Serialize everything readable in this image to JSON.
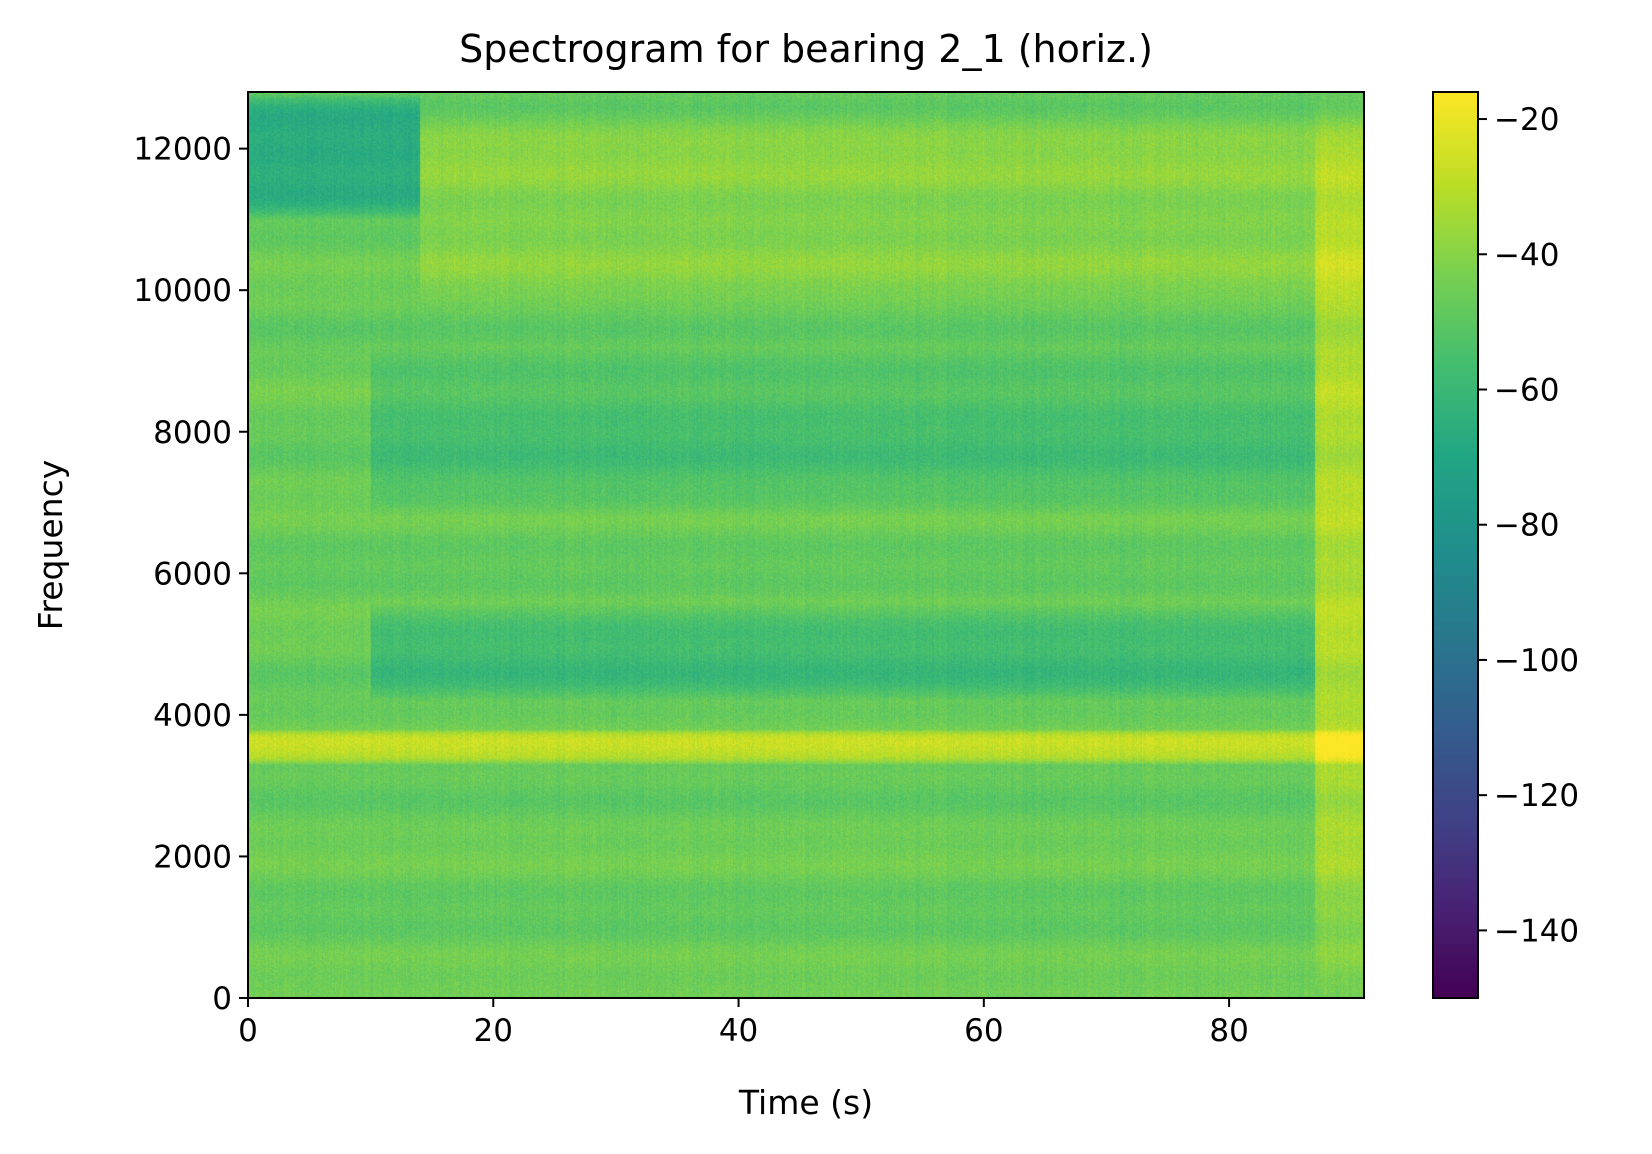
{
  "chart_data": {
    "type": "heatmap",
    "title": "Spectrogram for bearing 2_1 (horiz.)",
    "xlabel": "Time (s)",
    "ylabel": "Frequency",
    "xlim": [
      0,
      91
    ],
    "ylim": [
      0,
      12800
    ],
    "x_ticks": [
      0,
      20,
      40,
      60,
      80
    ],
    "x_tick_labels": [
      "0",
      "20",
      "40",
      "60",
      "80"
    ],
    "y_ticks": [
      0,
      2000,
      4000,
      6000,
      8000,
      10000,
      12000
    ],
    "y_tick_labels": [
      "0",
      "2000",
      "4000",
      "6000",
      "8000",
      "10000",
      "12000"
    ],
    "colorbar": {
      "colormap": "viridis",
      "range": [
        -150,
        -16
      ],
      "ticks": [
        -140,
        -120,
        -100,
        -80,
        -60,
        -40,
        -20
      ],
      "tick_labels": [
        "−140",
        "−120",
        "−100",
        "−80",
        "−60",
        "−40",
        "−20"
      ]
    },
    "grid": false,
    "legend": "none",
    "features": [
      {
        "description": "persistent spectral band",
        "freq_range": [
          3300,
          3800
        ],
        "time_range": [
          0,
          91
        ],
        "level_db": -30
      },
      {
        "description": "early high-frequency low-energy region",
        "freq_range": [
          11000,
          12800
        ],
        "time_range": [
          0,
          14
        ],
        "level_db": -68
      },
      {
        "description": "low-energy band",
        "freq_range": [
          4200,
          5600
        ],
        "time_range": [
          10,
          87
        ],
        "level_db": -58
      },
      {
        "description": "low-energy band",
        "freq_range": [
          6800,
          9200
        ],
        "time_range": [
          10,
          87
        ],
        "level_db": -55
      },
      {
        "description": "elevated band",
        "freq_range": [
          9800,
          12600
        ],
        "time_range": [
          14,
          91
        ],
        "level_db": -40
      },
      {
        "description": "broadband increase near end of record",
        "freq_range": [
          0,
          12800
        ],
        "time_range": [
          87,
          91
        ],
        "level_db": -32
      }
    ]
  }
}
